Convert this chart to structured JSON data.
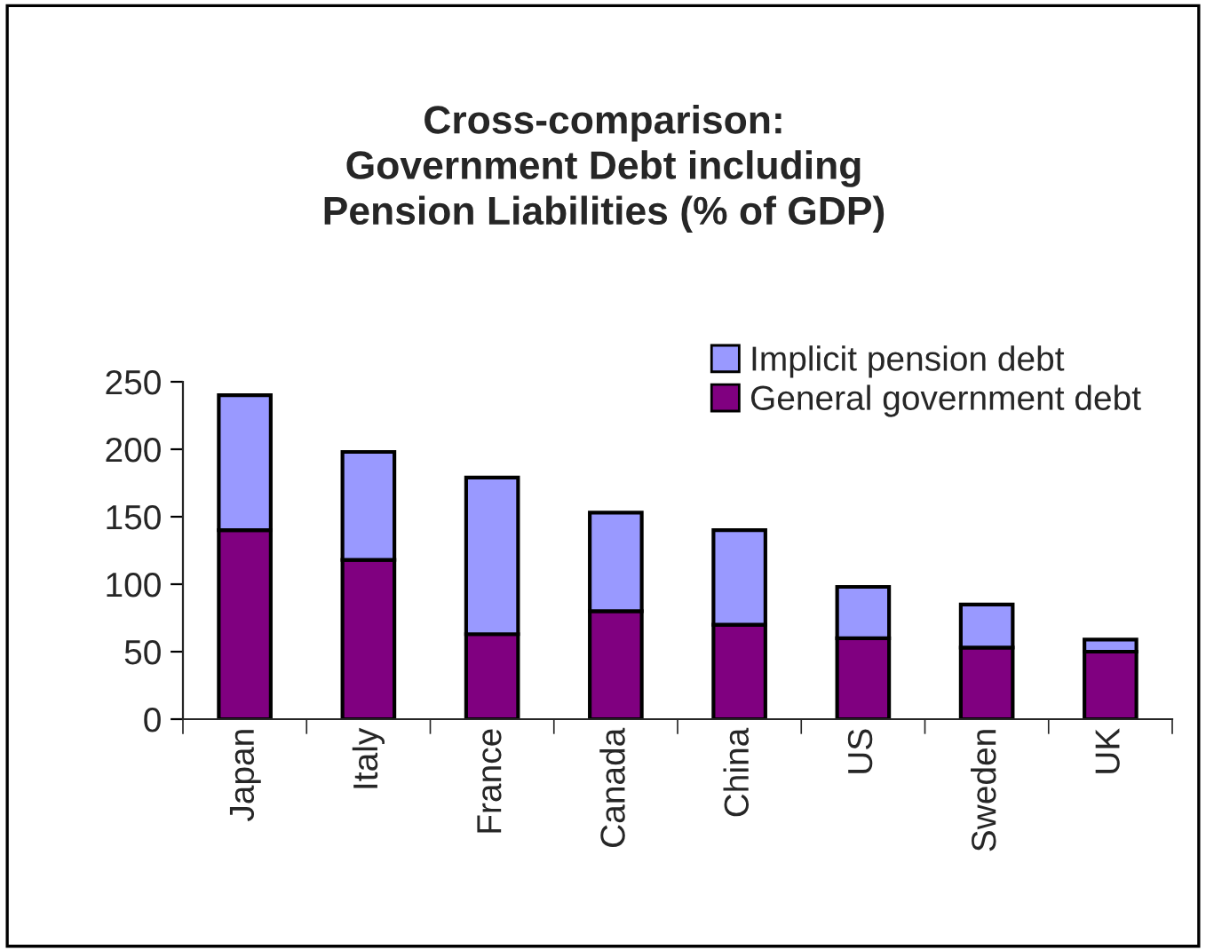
{
  "chart_data": {
    "type": "bar",
    "title": "Cross-comparison:\nGovernment Debt including\nPension Liabilities (% of GDP)",
    "stacked": true,
    "categories": [
      "Japan",
      "Italy",
      "France",
      "Canada",
      "China",
      "US",
      "Sweden",
      "UK"
    ],
    "series": [
      {
        "name": "General government debt",
        "color": "#800080",
        "values": [
          140,
          118,
          63,
          80,
          70,
          60,
          53,
          50
        ]
      },
      {
        "name": "Implicit pension debt",
        "color": "#9999ff",
        "values": [
          100,
          80,
          116,
          73,
          70,
          38,
          32,
          9
        ]
      }
    ],
    "ylim": [
      0,
      250
    ],
    "yticks": [
      0,
      50,
      100,
      150,
      200,
      250
    ],
    "grid": false,
    "legend": "top right"
  }
}
